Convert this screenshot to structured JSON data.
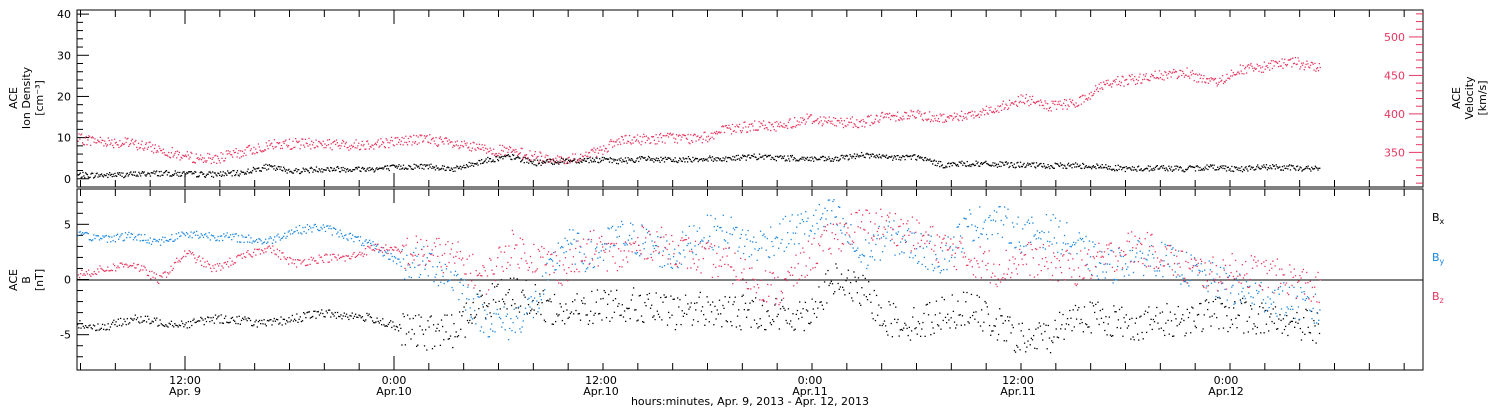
{
  "colors": {
    "density": "#000000",
    "velocity": "#e8365f",
    "bx": "#000000",
    "by": "#1a86e0",
    "bz": "#e8365f"
  },
  "chart_data": [
    {
      "type": "scatter",
      "panel": "top",
      "ylabel_left": [
        "ACE",
        "Ion Density",
        "[cm⁻³]"
      ],
      "ylabel_right": [
        "ACE",
        "Velocity",
        "[km/s]"
      ],
      "yticks_left": [
        "0",
        "10",
        "20",
        "30",
        "40"
      ],
      "ylim_left": [
        -2,
        41
      ],
      "yticks_right": [
        "350",
        "400",
        "450",
        "500"
      ],
      "ylim_right": [
        305,
        535
      ],
      "series": [
        {
          "axis": "left",
          "x_hours": [
            0,
            2,
            4,
            6,
            8,
            10,
            12,
            14,
            16,
            18,
            20,
            22,
            24,
            26,
            28,
            30,
            32,
            34,
            36,
            38,
            40,
            42,
            44,
            46,
            48,
            50,
            52,
            54,
            56,
            58,
            60,
            62,
            64,
            66,
            68,
            70,
            72,
            74,
            76,
            78,
            80,
            82,
            84,
            86,
            88,
            90,
            92
          ],
          "values": [
            1,
            1,
            1.2,
            1.5,
            1.3,
            1.2,
            1.5,
            3,
            2,
            2.5,
            2.5,
            2.5,
            3,
            3.2,
            2.5,
            4.5,
            5.5,
            4,
            4.5,
            4.8,
            4.5,
            5,
            4.6,
            5,
            5,
            5.5,
            5.2,
            5,
            4.8,
            6,
            5.2,
            5.5,
            3.5,
            3.8,
            3.6,
            3.5,
            3.2,
            3.4,
            3,
            2.5,
            2.8,
            2.5,
            3,
            2.5,
            3,
            2.8,
            2.5
          ]
        },
        {
          "axis": "right",
          "x_hours": [
            0,
            2,
            4,
            6,
            8,
            10,
            12,
            14,
            16,
            18,
            20,
            22,
            24,
            26,
            28,
            30,
            32,
            34,
            36,
            38,
            40,
            42,
            44,
            46,
            48,
            50,
            52,
            54,
            56,
            58,
            60,
            62,
            64,
            66,
            68,
            70,
            72,
            74,
            76,
            78,
            80,
            82,
            84,
            86,
            88,
            90,
            92
          ],
          "values": [
            368,
            365,
            362,
            355,
            345,
            342,
            350,
            360,
            362,
            362,
            360,
            362,
            366,
            368,
            360,
            355,
            352,
            345,
            340,
            348,
            365,
            368,
            370,
            368,
            380,
            385,
            385,
            395,
            390,
            390,
            398,
            400,
            395,
            400,
            408,
            420,
            410,
            415,
            440,
            445,
            450,
            455,
            440,
            458,
            462,
            468,
            460
          ]
        }
      ]
    },
    {
      "type": "scatter",
      "panel": "bottom",
      "ylabel": [
        "ACE",
        "B",
        "[nT]"
      ],
      "yticks": [
        "-5",
        "0",
        "5"
      ],
      "ylim": [
        -8.2,
        8.2
      ],
      "zero_line": true,
      "legend": [
        "Bx",
        "By",
        "Bz"
      ],
      "series": [
        {
          "name": "Bx",
          "x_hours": [
            0,
            2,
            4,
            6,
            8,
            10,
            12,
            14,
            16,
            18,
            20,
            22,
            24,
            26,
            28,
            30,
            32,
            34,
            36,
            38,
            40,
            42,
            44,
            46,
            48,
            50,
            52,
            54,
            56,
            58,
            60,
            62,
            64,
            66,
            68,
            70,
            72,
            74,
            76,
            78,
            80,
            82,
            84,
            86,
            88,
            90,
            92
          ],
          "values": [
            -4,
            -4.3,
            -3.5,
            -3.8,
            -4,
            -3.5,
            -3.6,
            -4,
            -3.5,
            -3,
            -3.2,
            -3.5,
            -4.5,
            -4.8,
            -4.5,
            -2,
            -1,
            -2,
            -3,
            -2.5,
            -2,
            -2.5,
            -3,
            -2.5,
            -3,
            -2.8,
            -3.2,
            -3,
            0,
            -1,
            -3.5,
            -4,
            -3,
            -2.5,
            -4,
            -5.5,
            -5,
            -3,
            -3.5,
            -4,
            -3.8,
            -3.5,
            -3,
            -3.2,
            -3.5,
            -3.8,
            -4.2
          ]
        },
        {
          "name": "By",
          "x_hours": [
            0,
            2,
            4,
            6,
            8,
            10,
            12,
            14,
            16,
            18,
            20,
            22,
            24,
            26,
            28,
            30,
            32,
            34,
            36,
            38,
            40,
            42,
            44,
            46,
            48,
            50,
            52,
            54,
            56,
            58,
            60,
            62,
            64,
            66,
            68,
            70,
            72,
            74,
            76,
            78,
            80,
            82,
            84,
            86,
            88,
            90,
            92
          ],
          "values": [
            4,
            3.8,
            4,
            3.5,
            4.2,
            4,
            3.8,
            3.5,
            4.5,
            4.8,
            4,
            3,
            1.5,
            1.5,
            0,
            -3.5,
            -4,
            -2,
            3.5,
            2,
            4,
            3.5,
            2,
            4.2,
            4.5,
            3,
            4,
            5,
            6,
            2,
            4,
            3,
            2,
            5,
            5.5,
            4,
            4.5,
            3,
            1,
            2,
            2,
            1,
            0,
            -1,
            -1.5,
            -2,
            -3
          ]
        },
        {
          "name": "Bz",
          "x_hours": [
            0,
            2,
            4,
            6,
            8,
            10,
            12,
            14,
            16,
            18,
            20,
            22,
            24,
            26,
            28,
            30,
            32,
            34,
            36,
            38,
            40,
            42,
            44,
            46,
            48,
            50,
            52,
            54,
            56,
            58,
            60,
            62,
            64,
            66,
            68,
            70,
            72,
            74,
            76,
            78,
            80,
            82,
            84,
            86,
            88,
            90,
            92
          ],
          "values": [
            0.5,
            1,
            1.5,
            0,
            2.5,
            1,
            2,
            3,
            1.5,
            2,
            2,
            3,
            2.5,
            2.5,
            2,
            0,
            3,
            2,
            1,
            3,
            2,
            3.5,
            3,
            2,
            1.5,
            0,
            -1,
            2,
            4,
            5,
            5,
            4,
            3,
            2,
            1,
            2,
            1.5,
            1,
            2,
            3,
            2.5,
            1,
            0.5,
            1,
            0.5,
            0,
            -1
          ]
        }
      ]
    }
  ],
  "x_axis": {
    "tick_labels": [
      {
        "time": "12:00",
        "date": "Apr. 9"
      },
      {
        "time": "0:00",
        "date": "Apr.10"
      },
      {
        "time": "12:00",
        "date": "Apr.10"
      },
      {
        "time": "0:00",
        "date": "Apr.11"
      },
      {
        "time": "12:00",
        "date": "Apr.11"
      },
      {
        "time": "0:00",
        "date": "Apr.12"
      }
    ],
    "title": "hours:minutes, Apr.  9, 2013 - Apr. 12, 2013"
  }
}
